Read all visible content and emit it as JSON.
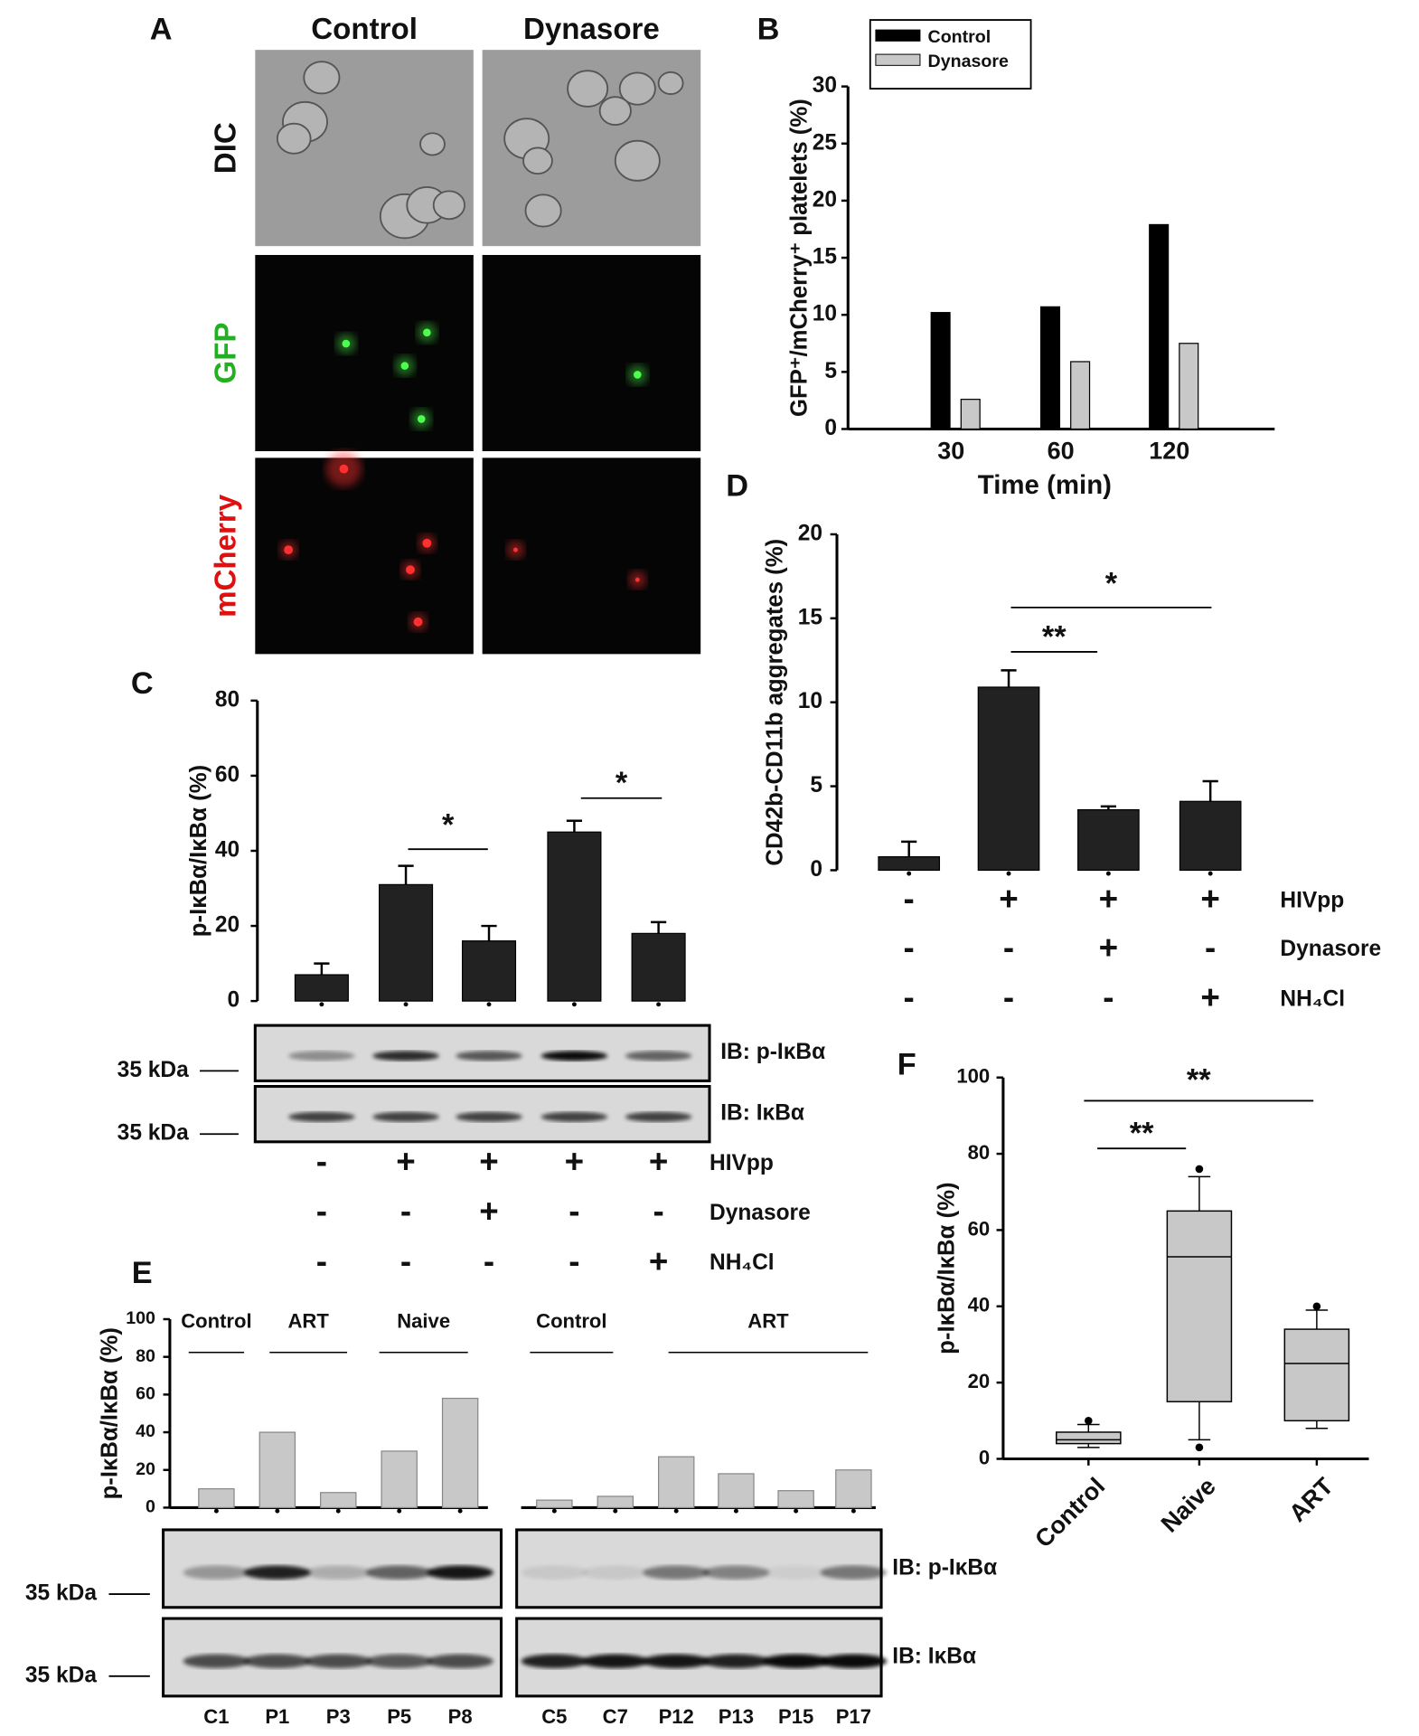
{
  "panel_labels": [
    "A",
    "B",
    "C",
    "D",
    "E",
    "F"
  ],
  "panel_a": {
    "columns": [
      "Control",
      "Dynasore"
    ],
    "rows": [
      "DIC",
      "GFP",
      "mCherry"
    ]
  },
  "chart_data": [
    {
      "type": "bar",
      "ylabel": "GFP⁺/mCherry⁺ platelets (%)",
      "xlabel": "Time (min)",
      "categories": [
        "30",
        "60",
        "120"
      ],
      "series": [
        {
          "name": "Control",
          "color": "#000000",
          "values": [
            10.2,
            10.7,
            17.9
          ]
        },
        {
          "name": "Dynasore",
          "color": "#c8c8c8",
          "values": [
            2.6,
            5.9,
            7.5
          ]
        }
      ],
      "ylim": [
        0,
        30
      ],
      "yticks": [
        0,
        5,
        10,
        15,
        20,
        25,
        30
      ],
      "legend": "top-left"
    },
    {
      "type": "bar",
      "ylabel": "p-IκBα/IκBα (%)",
      "values": [
        7,
        31,
        16,
        45,
        18
      ],
      "errors": [
        3,
        5,
        4,
        3,
        3
      ],
      "color": "#222222",
      "ylim": [
        0,
        80
      ],
      "yticks": [
        0,
        20,
        40,
        60,
        80
      ],
      "annotations": [
        "*",
        "*"
      ],
      "blots": [
        {
          "label": "IB: p-IκBα",
          "marker": "35 kDa"
        },
        {
          "label": "IB: IκBα",
          "marker": "35 kDa"
        }
      ],
      "conditions": [
        {
          "name": "HIVpp",
          "signs": [
            "-",
            "+",
            "+",
            "+",
            "+"
          ]
        },
        {
          "name": "Dynasore",
          "signs": [
            "-",
            "-",
            "+",
            "-",
            "-"
          ]
        },
        {
          "name": "NH₄Cl",
          "signs": [
            "-",
            "-",
            "-",
            "-",
            "+"
          ]
        }
      ]
    },
    {
      "type": "bar",
      "ylabel": "CD42b-CD11b aggregates (%)",
      "values": [
        0.8,
        10.9,
        3.6,
        4.1
      ],
      "errors": [
        0.9,
        1.0,
        0.2,
        1.2
      ],
      "color": "#222222",
      "ylim": [
        0,
        20
      ],
      "yticks": [
        0,
        5,
        10,
        15,
        20
      ],
      "annotations": [
        "**",
        "*"
      ],
      "conditions": [
        {
          "name": "HIVpp",
          "signs": [
            "-",
            "+",
            "+",
            "+"
          ]
        },
        {
          "name": "Dynasore",
          "signs": [
            "-",
            "-",
            "+",
            "-"
          ]
        },
        {
          "name": "NH₄Cl",
          "signs": [
            "-",
            "-",
            "-",
            "+"
          ]
        }
      ]
    },
    {
      "type": "bar",
      "ylabel": "p-IκBα/IκBα (%)",
      "groups": [
        "Control",
        "ART",
        "Naive"
      ],
      "categories": [
        "C1",
        "P1",
        "P3",
        "P5",
        "P8"
      ],
      "values": [
        10,
        40,
        8,
        30,
        58
      ],
      "color": "#c8c8c8",
      "ylim": [
        0,
        100
      ],
      "yticks": [
        0,
        20,
        40,
        60,
        80,
        100
      ],
      "blots": [
        {
          "label": "IB: p-IκBα",
          "marker": "35 kDa"
        },
        {
          "label": "IB: IκBα",
          "marker": "35 kDa"
        }
      ]
    },
    {
      "type": "bar",
      "groups": [
        "Control",
        "ART"
      ],
      "categories": [
        "C5",
        "C7",
        "P12",
        "P13",
        "P15",
        "P17"
      ],
      "values": [
        4,
        6,
        27,
        18,
        9,
        20
      ],
      "color": "#c8c8c8",
      "ylim": [
        0,
        100
      ]
    },
    {
      "type": "box",
      "ylabel": "p-IκBα/IκBα (%)",
      "categories": [
        "Control",
        "Naive",
        "ART"
      ],
      "color": "#c8c8c8",
      "boxes": [
        {
          "low": 3,
          "q1": 4,
          "median": 5,
          "q3": 7,
          "high": 9,
          "outliers": [
            10
          ]
        },
        {
          "low": 5,
          "q1": 15,
          "median": 53,
          "q3": 65,
          "high": 74,
          "outliers": [
            76,
            3
          ]
        },
        {
          "low": 8,
          "q1": 10,
          "median": 25,
          "q3": 34,
          "high": 39,
          "outliers": [
            40
          ]
        }
      ],
      "ylim": [
        0,
        100
      ],
      "yticks": [
        0,
        20,
        40,
        60,
        80,
        100
      ],
      "annotations": [
        "**",
        "**"
      ]
    }
  ]
}
